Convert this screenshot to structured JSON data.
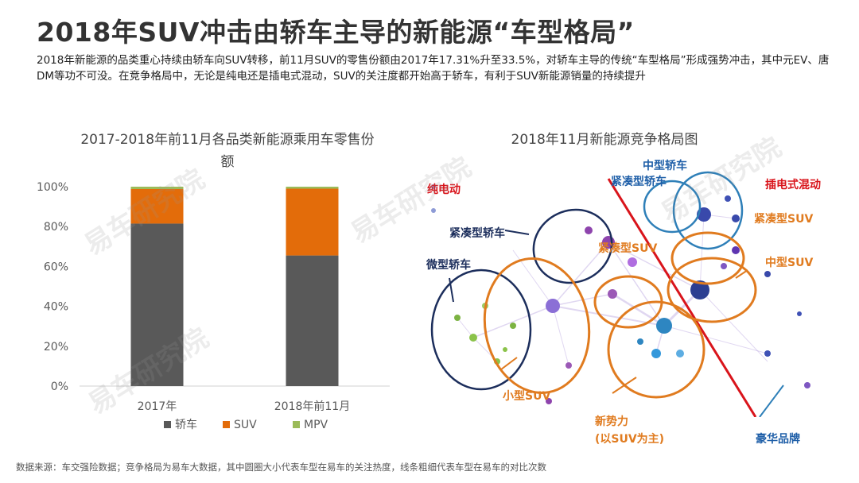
{
  "header": {
    "title": "2018年SUV冲击由轿车主导的新能源“车型格局”",
    "description": "2018年新能源的品类重心持续由轿车向SUV转移，前11月SUV的零售份额由2017年17.31%升至33.5%，对轿车主导的传统“车型格局”形成强势冲击，其中元EV、唐DM等功不可没。在竞争格局中，无论是纯电还是插电式混动，SUV的关注度都开始高于轿车，有利于SUV新能源销量的持续提升"
  },
  "left_chart": {
    "title": "2017-2018年前11月各品类新能源乘用车零售份额"
  },
  "right_chart": {
    "title": "2018年11月新能源竞争格局图",
    "labels": {
      "bev": "纯电动",
      "phev": "插电式混动",
      "mid_sedan": "中型轿车",
      "compact_sedan_top": "紧凑型轿车",
      "compact_sedan_left": "紧凑型轿车",
      "micro_sedan": "微型轿车",
      "compact_suv_center": "紧凑型SUV",
      "compact_suv_right": "紧凑型SUV",
      "mid_suv": "中型SUV",
      "small_suv": "小型SUV",
      "new_forces_1": "新势力",
      "new_forces_2": "(以SUV为主)",
      "luxury": "豪华品牌"
    },
    "colors": {
      "orange": "#e07b1f",
      "navy": "#1c2e5c",
      "blue": "#2e7fb8",
      "red": "#d9141b"
    }
  },
  "watermarks": [
    "易车研究院",
    "易车研究院",
    "易车研究院",
    "易车研究院"
  ],
  "footer": {
    "text": "数据来源：车交强险数据；竞争格局为易车大数据，其中圆圈大小代表车型在易车的关注热度，线条粗细代表车型在易车的对比次数"
  },
  "chart_data": {
    "type": "bar",
    "stacked": true,
    "categories": [
      "2017年",
      "2018年前11月"
    ],
    "series": [
      {
        "name": "轿车",
        "values": [
          81.5,
          65.5
        ],
        "color": "#595959"
      },
      {
        "name": "SUV",
        "values": [
          17.31,
          33.5
        ],
        "color": "#e36c0a"
      },
      {
        "name": "MPV",
        "values": [
          1.19,
          1.0
        ],
        "color": "#9bbb59"
      }
    ],
    "yticks": [
      "0%",
      "20%",
      "40%",
      "60%",
      "80%",
      "100%"
    ],
    "ylim": [
      0,
      100
    ],
    "legend_position": "bottom"
  }
}
